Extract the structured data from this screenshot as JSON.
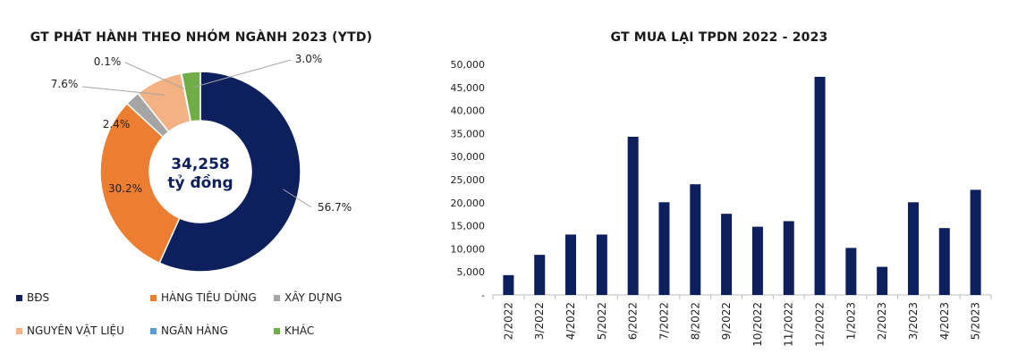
{
  "chart_data": [
    {
      "type": "pie",
      "title": "GT PHÁT HÀNH THEO NHÓM NGÀNH 2023 (YTD)",
      "center_value": "34,258",
      "center_unit": "tỷ đồng",
      "series": [
        {
          "name": "BĐS",
          "value": 56.7,
          "label": "56.7%",
          "color": "#0d1f5c"
        },
        {
          "name": "HÀNG TIÊU DÙNG",
          "value": 30.2,
          "label": "30.2%",
          "color": "#ed7d31"
        },
        {
          "name": "XÂY DỰNG",
          "value": 2.4,
          "label": "2.4%",
          "color": "#a5a5a5"
        },
        {
          "name": "NGUYÊN VẬT LIỆU",
          "value": 7.6,
          "label": "7.6%",
          "color": "#f4b183"
        },
        {
          "name": "NGÂN HÀNG",
          "value": 0.1,
          "label": "0.1%",
          "color": "#5b9bd5"
        },
        {
          "name": "KHÁC",
          "value": 3.0,
          "label": "3.0%",
          "color": "#70ad47"
        }
      ],
      "legend_position": "bottom"
    },
    {
      "type": "bar",
      "title": "GT MUA LẠI TPDN 2022 - 2023",
      "categories": [
        "2/2022",
        "3/2022",
        "4/2022",
        "5/2022",
        "6/2022",
        "7/2022",
        "8/2022",
        "9/2022",
        "10/2022",
        "11/2022",
        "12/2022",
        "1/2023",
        "2/2023",
        "3/2023",
        "4/2023",
        "5/2023"
      ],
      "values": [
        4300,
        8700,
        13100,
        13100,
        34300,
        20100,
        24000,
        17600,
        14800,
        16000,
        47300,
        10200,
        6100,
        20100,
        14500,
        22800
      ],
      "ylim": [
        0,
        50000
      ],
      "yticks": [
        "-",
        "5,000",
        "10,000",
        "15,000",
        "20,000",
        "25,000",
        "30,000",
        "35,000",
        "40,000",
        "45,000",
        "50,000"
      ],
      "color": "#0d1f5c",
      "grid": false
    }
  ]
}
